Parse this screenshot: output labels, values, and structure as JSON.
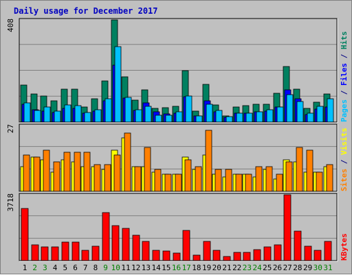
{
  "title": "Daily usage for December 2017",
  "colors": {
    "pages": "#00c0ff",
    "files": "#0000ff",
    "hits": "#008060",
    "sites": "#ff8000",
    "visits": "#ffff00",
    "kbytes": "#ff0000",
    "weekday_label": "#000000",
    "weekend_label": "#008000",
    "panel_bg": "#c0c0c0"
  },
  "chart_data": [
    {
      "type": "bar",
      "name": "hits-files-pages",
      "ymax_label": "408",
      "ylim": [
        0,
        408
      ],
      "side_labels": [
        {
          "text": "Pages",
          "color": "#00c0ff"
        },
        {
          "text": " / ",
          "color": "#000080"
        },
        {
          "text": "Files",
          "color": "#0000ff"
        },
        {
          "text": " / ",
          "color": "#000080"
        },
        {
          "text": "Hits",
          "color": "#008060"
        }
      ],
      "categories": [
        "1",
        "2",
        "3",
        "4",
        "5",
        "6",
        "7",
        "8",
        "9",
        "10",
        "11",
        "12",
        "13",
        "14",
        "15",
        "16",
        "17",
        "18",
        "19",
        "20",
        "21",
        "22",
        "23",
        "24",
        "25",
        "26",
        "27",
        "28",
        "29",
        "30",
        "31"
      ],
      "series": [
        {
          "name": "Hits",
          "values": [
            148,
            112,
            104,
            86,
            132,
            132,
            60,
            94,
            164,
            408,
            180,
            88,
            128,
            56,
            58,
            62,
            204,
            44,
            150,
            68,
            24,
            60,
            66,
            72,
            72,
            116,
            222,
            132,
            54,
            80,
            112
          ]
        },
        {
          "name": "Files",
          "values": [
            70,
            50,
            44,
            38,
            56,
            56,
            36,
            44,
            86,
            228,
            96,
            46,
            76,
            42,
            34,
            36,
            100,
            24,
            84,
            40,
            18,
            36,
            36,
            40,
            44,
            60,
            130,
            92,
            30,
            52,
            60
          ]
        },
        {
          "name": "Pages",
          "values": [
            76,
            46,
            60,
            44,
            68,
            66,
            38,
            50,
            92,
            300,
            98,
            50,
            64,
            28,
            28,
            42,
            104,
            26,
            70,
            46,
            22,
            36,
            36,
            40,
            50,
            60,
            110,
            82,
            36,
            64,
            94
          ]
        }
      ]
    },
    {
      "type": "bar",
      "name": "visits-sites",
      "ymax_label": "27",
      "ylim": [
        0,
        27
      ],
      "side_labels": [
        {
          "text": "Sites",
          "color": "#ff8000"
        },
        {
          "text": " / ",
          "color": "#000080"
        },
        {
          "text": "Visits",
          "color": "#ffff00"
        }
      ],
      "categories": [
        "1",
        "2",
        "3",
        "4",
        "5",
        "6",
        "7",
        "8",
        "9",
        "10",
        "11",
        "12",
        "13",
        "14",
        "15",
        "16",
        "17",
        "18",
        "19",
        "20",
        "21",
        "22",
        "23",
        "24",
        "25",
        "26",
        "27",
        "28",
        "29",
        "30",
        "31"
      ],
      "series": [
        {
          "name": "Visits",
          "values": [
            10,
            14,
            13,
            8,
            13,
            12,
            10,
            10,
            9,
            17,
            22,
            10,
            10,
            8,
            7,
            7,
            14,
            9,
            15,
            7,
            6,
            7,
            7,
            6,
            9,
            5,
            13,
            12,
            8,
            8,
            10
          ]
        },
        {
          "name": "Sites",
          "values": [
            15,
            14,
            17,
            12,
            16,
            16,
            16,
            11,
            11,
            15,
            24,
            10,
            18,
            9,
            7,
            7,
            13,
            10,
            25,
            9,
            9,
            7,
            7,
            10,
            10,
            7,
            12,
            18,
            17,
            8,
            11
          ]
        }
      ]
    },
    {
      "type": "bar",
      "name": "kbytes",
      "ymax_label": "3718",
      "ylim": [
        0,
        3718
      ],
      "side_labels": [
        {
          "text": "KBytes",
          "color": "#ff0000"
        }
      ],
      "categories": [
        "1",
        "2",
        "3",
        "4",
        "5",
        "6",
        "7",
        "8",
        "9",
        "10",
        "11",
        "12",
        "13",
        "14",
        "15",
        "16",
        "17",
        "18",
        "19",
        "20",
        "21",
        "22",
        "23",
        "24",
        "25",
        "26",
        "27",
        "28",
        "29",
        "30",
        "31"
      ],
      "series": [
        {
          "name": "KBytes",
          "values": [
            2960,
            900,
            760,
            780,
            1050,
            1030,
            570,
            800,
            2700,
            1990,
            1820,
            1420,
            1100,
            570,
            550,
            440,
            1720,
            320,
            1100,
            600,
            220,
            480,
            480,
            630,
            770,
            880,
            3718,
            1660,
            800,
            600,
            1090
          ]
        }
      ]
    }
  ],
  "x_axis": {
    "labels": [
      "1",
      "2",
      "3",
      "4",
      "5",
      "6",
      "7",
      "8",
      "9",
      "10",
      "11",
      "12",
      "13",
      "14",
      "15",
      "16",
      "17",
      "18",
      "19",
      "20",
      "21",
      "22",
      "23",
      "24",
      "25",
      "26",
      "27",
      "28",
      "29",
      "30",
      "31"
    ],
    "weekend": [
      "2",
      "3",
      "9",
      "10",
      "16",
      "17",
      "23",
      "24",
      "30",
      "31"
    ]
  }
}
